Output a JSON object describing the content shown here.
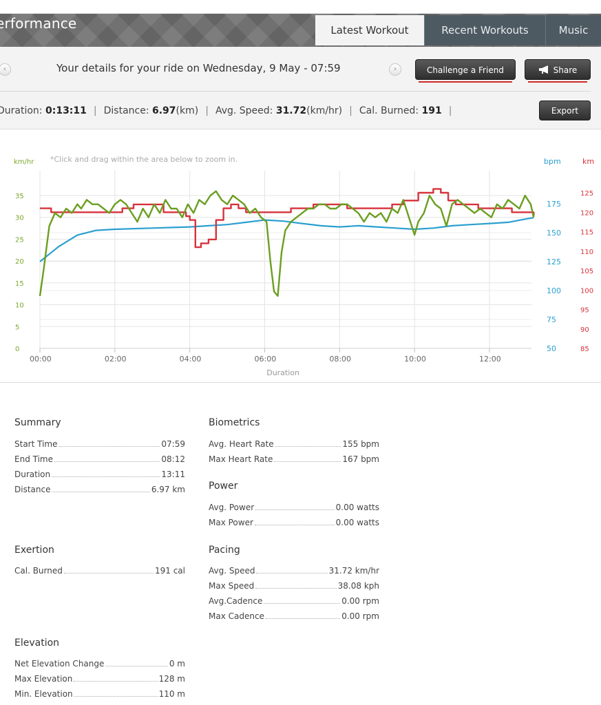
{
  "header": {
    "title": "erformance",
    "tabs": [
      {
        "label": "Latest Workout",
        "active": true
      },
      {
        "label": "Recent Workouts",
        "active": false
      },
      {
        "label": "Music",
        "active": false
      }
    ]
  },
  "toolbar": {
    "ride_text": "Your details for your ride on Wednesday, 9 May - 07:59",
    "prev_icon": "chevron-left-icon",
    "next_icon": "chevron-right-icon",
    "challenge_label": "Challenge a Friend",
    "share_label": "Share",
    "export_label": "Export"
  },
  "stats": {
    "duration_label": "Duration:",
    "duration_value": "0:13:11",
    "distance_label": "Distance:",
    "distance_value": "6.97",
    "distance_unit": "(km)",
    "speed_label": "Avg. Speed:",
    "speed_value": "31.72",
    "speed_unit": "(km/hr)",
    "cal_label": "Cal. Burned:",
    "cal_value": "191"
  },
  "chart_data": {
    "type": "line",
    "hint": "*Click and drag within the area below to zoom in.",
    "left_axis_label": "km/hr",
    "right_axis1_label": "bpm",
    "right_axis2_label": "km",
    "xlabel_partial": "Duration",
    "x_ticks": [
      "00:00",
      "02:00",
      "04:00",
      "06:00",
      "08:00",
      "10:00",
      "12:00"
    ],
    "left_ticks": [
      0,
      5,
      10,
      15,
      20,
      25,
      30,
      35
    ],
    "bpm_ticks": [
      50,
      75,
      100,
      125,
      150,
      175
    ],
    "elev_ticks": [
      85,
      90,
      95,
      100,
      105,
      110,
      115,
      120,
      125
    ],
    "colors": {
      "speed": "#6a9e1f",
      "heart_rate": "#2a9fd0",
      "elevation": "#d6323c",
      "left_axis": "#7aa82a",
      "bpm_axis": "#2a9fd0",
      "elev_axis": "#d6323c"
    },
    "series": [
      {
        "axis": "speed",
        "x": [
          0,
          0.1,
          0.25,
          0.4,
          0.55,
          0.7,
          0.85,
          1,
          1.1,
          1.25,
          1.4,
          1.55,
          1.7,
          1.85,
          2,
          2.15,
          2.3,
          2.45,
          2.6,
          2.75,
          2.9,
          3.05,
          3.2,
          3.35,
          3.5,
          3.65,
          3.8,
          3.95,
          4.1,
          4.25,
          4.4,
          4.55,
          4.7,
          4.85,
          5,
          5.15,
          5.3,
          5.45,
          5.6,
          5.75,
          5.9,
          6.05,
          6.15,
          6.25,
          6.35,
          6.45,
          6.55,
          6.7,
          6.85,
          7,
          7.15,
          7.3,
          7.45,
          7.6,
          7.75,
          7.9,
          8.05,
          8.2,
          8.35,
          8.5,
          8.65,
          8.8,
          8.95,
          9.1,
          9.25,
          9.4,
          9.55,
          9.7,
          9.85,
          10,
          10.1,
          10.25,
          10.4,
          10.55,
          10.7,
          10.85,
          11,
          11.15,
          11.3,
          11.45,
          11.6,
          11.75,
          11.9,
          12.05,
          12.2,
          12.35,
          12.5,
          12.65,
          12.8,
          12.95,
          13.1,
          13.18
        ],
        "y": [
          12,
          18,
          28,
          31,
          30,
          32,
          31,
          33,
          32,
          34,
          33,
          33,
          32,
          31,
          33,
          34,
          33,
          31,
          29,
          32,
          30,
          33,
          31,
          34,
          32,
          32,
          30,
          33,
          31,
          34,
          33,
          35,
          36,
          34,
          33,
          35,
          34,
          33,
          31,
          32,
          30,
          29,
          20,
          13,
          12,
          22,
          27,
          29,
          30,
          31,
          32,
          32,
          33,
          33,
          32,
          32,
          33,
          33,
          32,
          31,
          29,
          31,
          30,
          31,
          29,
          32,
          31,
          34,
          30,
          26,
          29,
          31,
          35,
          33,
          32,
          28,
          33,
          34,
          33,
          32,
          31,
          32,
          31,
          30,
          33,
          32,
          34,
          33,
          32,
          35,
          33,
          30
        ]
      },
      {
        "axis": "heart_rate",
        "x": [
          0,
          0.5,
          1,
          1.5,
          2,
          3,
          4,
          4.5,
          5,
          5.5,
          6,
          6.5,
          7,
          7.5,
          8,
          8.5,
          9,
          9.5,
          10,
          10.5,
          11,
          11.5,
          12,
          12.5,
          13,
          13.18
        ],
        "y": [
          125,
          138,
          148,
          152,
          153,
          154,
          155,
          156,
          157,
          159,
          161,
          160,
          158,
          156,
          155,
          156,
          155,
          154,
          153,
          154,
          156,
          157,
          158,
          159,
          162,
          163
        ]
      },
      {
        "axis": "elevation",
        "x": [
          0,
          0.15,
          0.3,
          0.6,
          1,
          1.3,
          1.6,
          2,
          2.2,
          2.5,
          2.8,
          3,
          3.3,
          3.6,
          3.9,
          4,
          4.15,
          4.3,
          4.5,
          4.7,
          4.9,
          5.1,
          5.3,
          5.5,
          5.8,
          6.1,
          6.4,
          6.7,
          7,
          7.3,
          7.6,
          7.9,
          8.2,
          8.5,
          8.8,
          9.1,
          9.4,
          9.7,
          9.9,
          10.1,
          10.3,
          10.5,
          10.7,
          10.9,
          11.1,
          11.4,
          11.7,
          12,
          12.3,
          12.6,
          12.9,
          13.18
        ],
        "y": [
          121,
          121,
          120,
          120,
          120,
          120,
          120,
          120,
          121,
          122,
          122,
          122,
          120,
          120,
          119,
          118,
          111,
          112,
          113,
          118,
          121,
          122,
          121,
          120,
          120,
          120,
          120,
          121,
          121,
          122,
          122,
          122,
          121,
          121,
          121,
          121,
          122,
          123,
          123,
          125,
          125,
          126,
          125,
          123,
          122,
          122,
          121,
          121,
          121,
          120,
          120,
          119
        ]
      }
    ]
  },
  "summary": {
    "title": "Summary",
    "rows": [
      {
        "label": "Start Time",
        "value": "07:59"
      },
      {
        "label": "End Time",
        "value": "08:12"
      },
      {
        "label": "Duration",
        "value": "13:11"
      },
      {
        "label": "Distance",
        "value": "6.97 km"
      }
    ]
  },
  "exertion": {
    "title": "Exertion",
    "rows": [
      {
        "label": "Cal. Burned",
        "value": "191 cal"
      }
    ]
  },
  "elevation": {
    "title": "Elevation",
    "rows": [
      {
        "label": "Net Elevation Change",
        "value": "0 m"
      },
      {
        "label": "Max Elevation",
        "value": "128 m"
      },
      {
        "label": "Min. Elevation",
        "value": "110 m"
      }
    ]
  },
  "biometrics": {
    "title": "Biometrics",
    "rows": [
      {
        "label": "Avg. Heart Rate",
        "value": "155 bpm"
      },
      {
        "label": "Max Heart Rate",
        "value": "167 bpm"
      }
    ]
  },
  "power": {
    "title": "Power",
    "rows": [
      {
        "label": "Avg. Power",
        "value": "0.00 watts"
      },
      {
        "label": "Max Power",
        "value": "0.00 watts"
      }
    ]
  },
  "pacing": {
    "title": "Pacing",
    "rows": [
      {
        "label": "Avg. Speed",
        "value": "31.72 km/hr"
      },
      {
        "label": "Max Speed",
        "value": "38.08 kph"
      },
      {
        "label": "Avg.Cadence",
        "value": "0.00 rpm"
      },
      {
        "label": "Max Cadence",
        "value": "0.00 rpm"
      }
    ]
  }
}
